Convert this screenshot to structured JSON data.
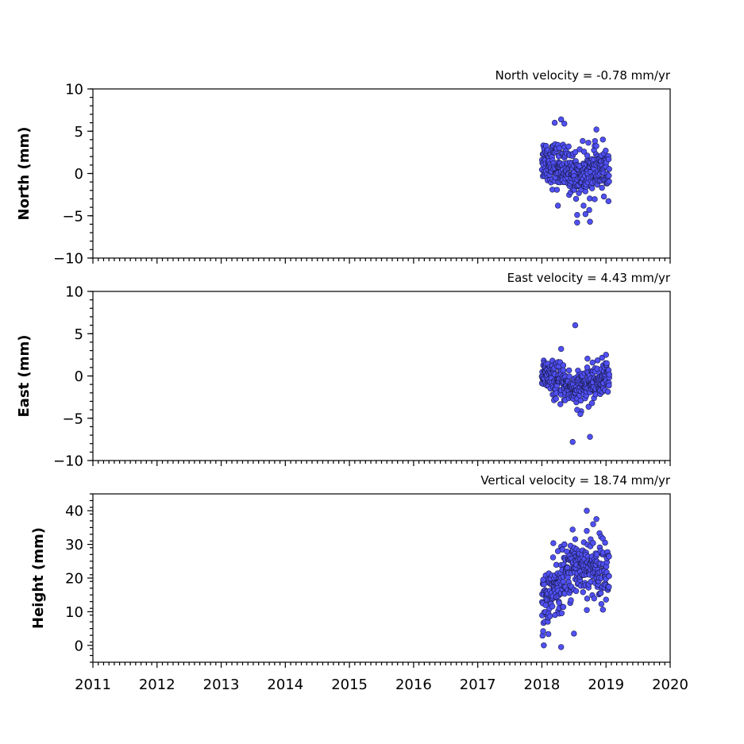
{
  "chart_data": {
    "type": "scatter",
    "x_axis": {
      "range": [
        2011,
        2020
      ],
      "ticks": [
        "2011",
        "2012",
        "2013",
        "2014",
        "2015",
        "2016",
        "2017",
        "2018",
        "2019",
        "2020"
      ]
    },
    "panels": [
      {
        "id": "north",
        "title": "North velocity = -0.78 mm/yr",
        "ylabel": "North (mm)",
        "ylim": [
          -10,
          10
        ],
        "yticks": [
          -10,
          -5,
          0,
          5,
          10
        ],
        "ytick_labels": [
          "−10",
          "−5",
          "0",
          "5",
          "10"
        ],
        "series": {
          "x_range": [
            2018.0,
            2019.05
          ],
          "center": [
            1.8,
            0.0,
            0.5
          ],
          "spread": 1.3,
          "outliers": [
            [
              2018.2,
              6.0
            ],
            [
              2018.3,
              6.4
            ],
            [
              2018.35,
              5.9
            ],
            [
              2018.85,
              5.2
            ],
            [
              2018.25,
              -3.8
            ],
            [
              2018.55,
              -4.9
            ],
            [
              2018.55,
              -5.8
            ],
            [
              2018.75,
              -5.7
            ],
            [
              2018.68,
              -4.8
            ],
            [
              2018.65,
              -3.8
            ]
          ]
        }
      },
      {
        "id": "east",
        "title": "East velocity = 4.43 mm/yr",
        "ylabel": "East (mm)",
        "ylim": [
          -10,
          10
        ],
        "yticks": [
          -10,
          -5,
          0,
          5,
          10
        ],
        "ytick_labels": [
          "−10",
          "−5",
          "0",
          "5",
          "10"
        ],
        "series": {
          "x_range": [
            2018.0,
            2019.05
          ],
          "center": [
            0.2,
            -1.6,
            0.0
          ],
          "spread": 1.0,
          "outliers": [
            [
              2018.52,
              6.0
            ],
            [
              2018.48,
              -7.8
            ],
            [
              2018.75,
              -7.2
            ],
            [
              2018.6,
              -4.5
            ],
            [
              2018.55,
              -4.0
            ],
            [
              2018.3,
              3.2
            ],
            [
              2019.0,
              2.5
            ]
          ]
        }
      },
      {
        "id": "height",
        "title": "Vertical velocity = 18.74 mm/yr",
        "ylabel": "Height (mm)",
        "ylim": [
          -5,
          45
        ],
        "yticks": [
          0,
          10,
          20,
          30,
          40
        ],
        "ytick_labels": [
          "0",
          "10",
          "20",
          "30",
          "40"
        ],
        "series": {
          "x_range": [
            2018.0,
            2019.05
          ],
          "center": [
            12.0,
            24.0,
            22.0
          ],
          "spread": 4.5,
          "outliers": [
            [
              2018.03,
              0.0
            ],
            [
              2018.3,
              -0.5
            ],
            [
              2018.5,
              3.5
            ],
            [
              2018.7,
              40.0
            ],
            [
              2018.85,
              37.5
            ],
            [
              2018.8,
              36.0
            ],
            [
              2018.7,
              34.0
            ],
            [
              2018.35,
              30.0
            ],
            [
              2018.25,
              28.0
            ],
            [
              2018.02,
              19.5
            ]
          ]
        }
      }
    ]
  },
  "colors": {
    "marker_fill": "#5050f5",
    "marker_edge": "#1a1a4a",
    "axes": "#000000"
  }
}
